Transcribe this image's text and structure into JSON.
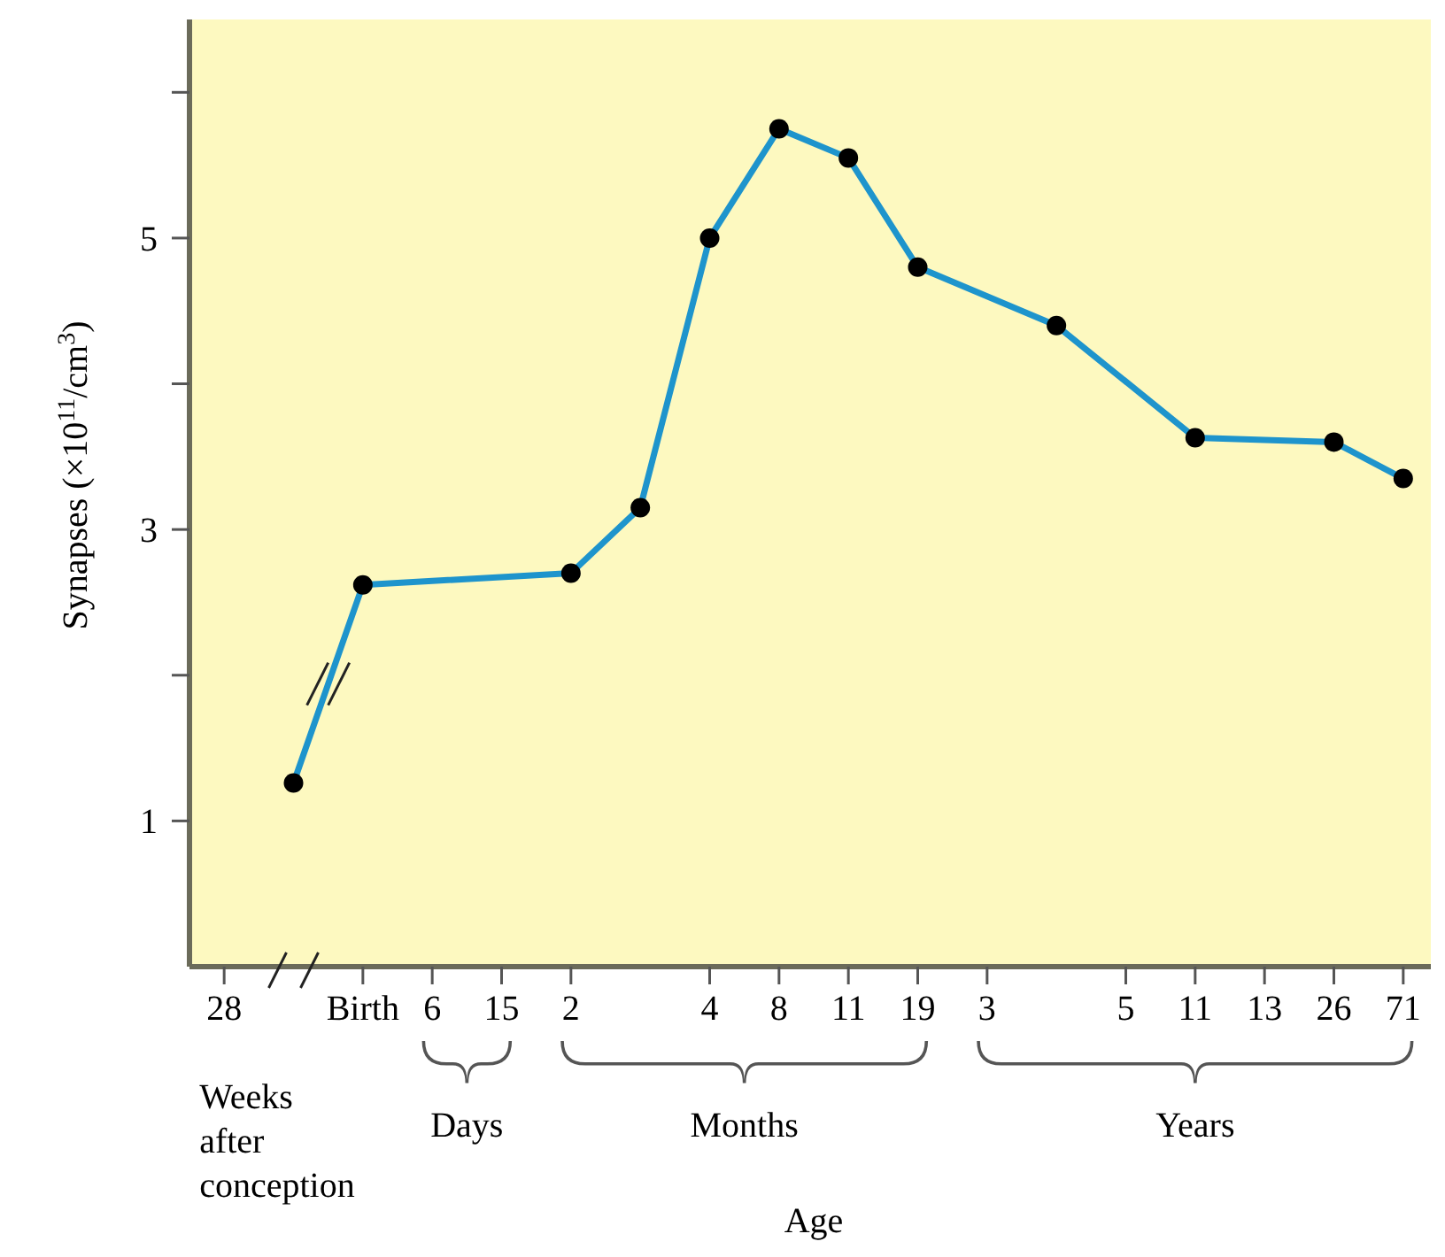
{
  "chart_data": {
    "type": "line",
    "ylabel": "Synapses (×10$^{11}$/cm$^{3}$)",
    "xlabel": "Age",
    "categories": [
      "28",
      null,
      "Birth",
      "6",
      "15",
      "2",
      null,
      "4",
      "8",
      "11",
      "19",
      "3",
      null,
      "5",
      "11",
      "13",
      "26",
      "71"
    ],
    "series": [
      {
        "color": "#1e94cc",
        "values": [
          null,
          1.26,
          2.62,
          null,
          null,
          2.7,
          3.15,
          5.0,
          5.75,
          5.55,
          4.8,
          null,
          4.4,
          null,
          3.63,
          null,
          3.6,
          3.35
        ]
      }
    ],
    "ylim": [
      0,
      6.5
    ],
    "yticks": [
      1,
      {
        "value": 2,
        "label": null
      },
      3,
      {
        "value": 4,
        "label": null
      },
      5,
      {
        "value": 6,
        "label": null
      }
    ],
    "annotations": [
      "Weeks after conception",
      "Days",
      "Months",
      "Years"
    ],
    "marker": "circle",
    "grid": false
  }
}
